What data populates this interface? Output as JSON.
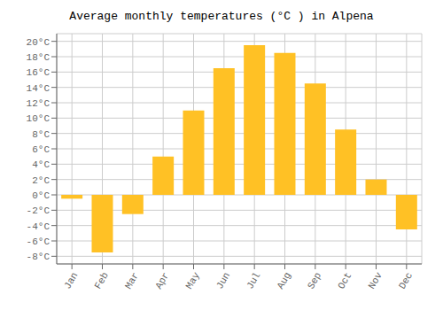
{
  "chart_data": {
    "type": "bar",
    "title": "Average monthly temperatures (°C ) in Alpena",
    "categories": [
      "Jan",
      "Feb",
      "Mar",
      "Apr",
      "May",
      "Jun",
      "Jul",
      "Aug",
      "Sep",
      "Oct",
      "Nov",
      "Dec"
    ],
    "values": [
      -0.5,
      -7.5,
      -2.5,
      5.0,
      11.0,
      16.5,
      19.5,
      18.5,
      14.5,
      8.5,
      2.0,
      -4.5
    ],
    "color": "#FFC125",
    "ylim": [
      -9,
      21
    ],
    "yticks": [
      {
        "value": -8,
        "label": "-8°C"
      },
      {
        "value": -6,
        "label": "-6°C"
      },
      {
        "value": -4,
        "label": "-4°C"
      },
      {
        "value": -2,
        "label": "-2°C"
      },
      {
        "value": 0,
        "label": "0°C"
      },
      {
        "value": 2,
        "label": "2°C"
      },
      {
        "value": 4,
        "label": "4°C"
      },
      {
        "value": 6,
        "label": "6°C"
      },
      {
        "value": 8,
        "label": "8°C"
      },
      {
        "value": 10,
        "label": "10°C"
      },
      {
        "value": 12,
        "label": "12°C"
      },
      {
        "value": 14,
        "label": "14°C"
      },
      {
        "value": 16,
        "label": "16°C"
      },
      {
        "value": 18,
        "label": "18°C"
      },
      {
        "value": 20,
        "label": "20°C"
      }
    ],
    "grid": true
  }
}
